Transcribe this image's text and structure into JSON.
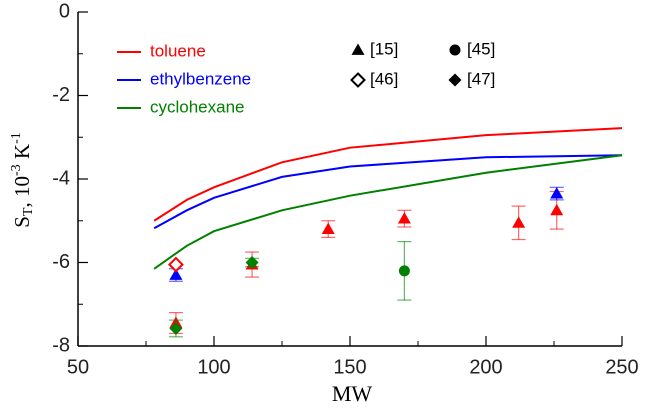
{
  "chart_data": {
    "type": "line",
    "x_label": "MW",
    "y_label": {
      "symbol": "S",
      "symbol_sub": "T",
      "unit": ", 10",
      "unit_exp": "-3",
      "unit2": " K",
      "unit2_exp": "-1"
    },
    "xlim": [
      50,
      250
    ],
    "xticks": [
      50,
      100,
      150,
      200,
      250
    ],
    "xminor": [
      75,
      125,
      175,
      225
    ],
    "ylim": [
      -8,
      0
    ],
    "yticks": [
      0,
      -2,
      -4,
      -6,
      -8
    ],
    "yminor": [
      -1,
      -3,
      -5,
      -7
    ],
    "series": [
      {
        "name": "toluene",
        "color": "#ff0000",
        "x": [
          78,
          90,
          100,
          125,
          150,
          200,
          250
        ],
        "values": [
          -5.0,
          -4.5,
          -4.2,
          -3.6,
          -3.25,
          -2.95,
          -2.78
        ]
      },
      {
        "name": "ethylbenzene",
        "color": "#0000ff",
        "x": [
          78,
          90,
          100,
          125,
          150,
          200,
          250
        ],
        "values": [
          -5.18,
          -4.75,
          -4.45,
          -3.95,
          -3.7,
          -3.48,
          -3.43
        ]
      },
      {
        "name": "cyclohexane",
        "color": "#008000",
        "x": [
          78,
          90,
          100,
          125,
          150,
          200,
          250
        ],
        "values": [
          -6.15,
          -5.6,
          -5.25,
          -4.75,
          -4.4,
          -3.85,
          -3.43
        ]
      }
    ],
    "reference_legend": [
      {
        "label": "[15]",
        "marker": "triangle"
      },
      {
        "label": "[45]",
        "marker": "circle"
      },
      {
        "label": "[46]",
        "marker": "diamond-open"
      },
      {
        "label": "[47]",
        "marker": "diamond"
      }
    ],
    "points": [
      {
        "marker": "triangle",
        "color": "#ff0000",
        "x": [
          86,
          114,
          142,
          170,
          212,
          226
        ],
        "values": [
          -7.45,
          -6.05,
          -5.2,
          -4.95,
          -5.05,
          -4.75
        ],
        "errors": [
          0.25,
          0.3,
          0.2,
          0.2,
          0.4,
          0.45
        ]
      },
      {
        "marker": "triangle",
        "color": "#0000ff",
        "x": [
          86,
          226
        ],
        "values": [
          -6.3,
          -4.35
        ],
        "errors": [
          0.15,
          0.15
        ]
      },
      {
        "marker": "diamond-open",
        "color": "#ff0000",
        "x": [
          86
        ],
        "values": [
          -6.05
        ],
        "errors": [
          null
        ]
      },
      {
        "marker": "diamond",
        "color": "#008000",
        "x": [
          86,
          114
        ],
        "values": [
          -7.58,
          -6.0
        ],
        "errors": [
          0.2,
          0.1
        ]
      },
      {
        "marker": "circle",
        "color": "#008000",
        "x": [
          170
        ],
        "values": [
          -6.2
        ],
        "errors": [
          0.7
        ]
      }
    ]
  }
}
